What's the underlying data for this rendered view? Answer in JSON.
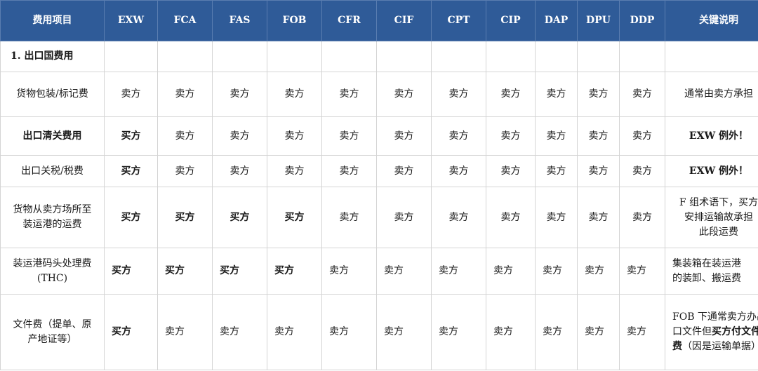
{
  "table": {
    "headers": [
      "费用项目",
      "EXW",
      "FCA",
      "FAS",
      "FOB",
      "CFR",
      "CIF",
      "CPT",
      "CIP",
      "DAP",
      "DPU",
      "DDP",
      "关键说明"
    ],
    "section_title": "1. 出口国费用",
    "rows": [
      {
        "item": "货物包装/标记费",
        "cells": [
          "卖方",
          "卖方",
          "卖方",
          "卖方",
          "卖方",
          "卖方",
          "卖方",
          "卖方",
          "卖方",
          "卖方",
          "卖方"
        ],
        "note": "通常由卖方承担"
      },
      {
        "item": "出口清关费用",
        "cells": [
          "买方",
          "卖方",
          "卖方",
          "卖方",
          "卖方",
          "卖方",
          "卖方",
          "卖方",
          "卖方",
          "卖方",
          "卖方"
        ],
        "note": "EXW 例外！"
      },
      {
        "item": "出口关税/税费",
        "cells": [
          "买方",
          "卖方",
          "卖方",
          "卖方",
          "卖方",
          "卖方",
          "卖方",
          "卖方",
          "卖方",
          "卖方",
          "卖方"
        ],
        "note": "EXW 例外！"
      },
      {
        "item_lines": [
          "货物从卖方场所至",
          "装运港的运费"
        ],
        "cells": [
          "买方",
          "买方",
          "买方",
          "买方",
          "卖方",
          "卖方",
          "卖方",
          "卖方",
          "卖方",
          "卖方",
          "卖方"
        ],
        "note_lines": [
          "F 组术语下，买方",
          "安排运输故承担",
          "此段运费"
        ]
      },
      {
        "item_lines": [
          "装运港码头处理费",
          "(THC)"
        ],
        "cells": [
          "买方",
          "买方",
          "买方",
          "买方",
          "卖方",
          "卖方",
          "卖方",
          "卖方",
          "卖方",
          "卖方",
          "卖方"
        ],
        "note_lines": [
          "集装箱在装运港",
          "的装卸、搬运费"
        ]
      },
      {
        "item_lines": [
          "文件费（提单、原",
          "产地证等）"
        ],
        "cells": [
          "买方",
          "卖方",
          "卖方",
          "卖方",
          "卖方",
          "卖方",
          "卖方",
          "卖方",
          "卖方",
          "卖方",
          "卖方"
        ],
        "note_parts": [
          "FOB 下通常卖方",
          "办出口文件但",
          "买方付文件费",
          "（因是运输单据）"
        ]
      }
    ]
  }
}
